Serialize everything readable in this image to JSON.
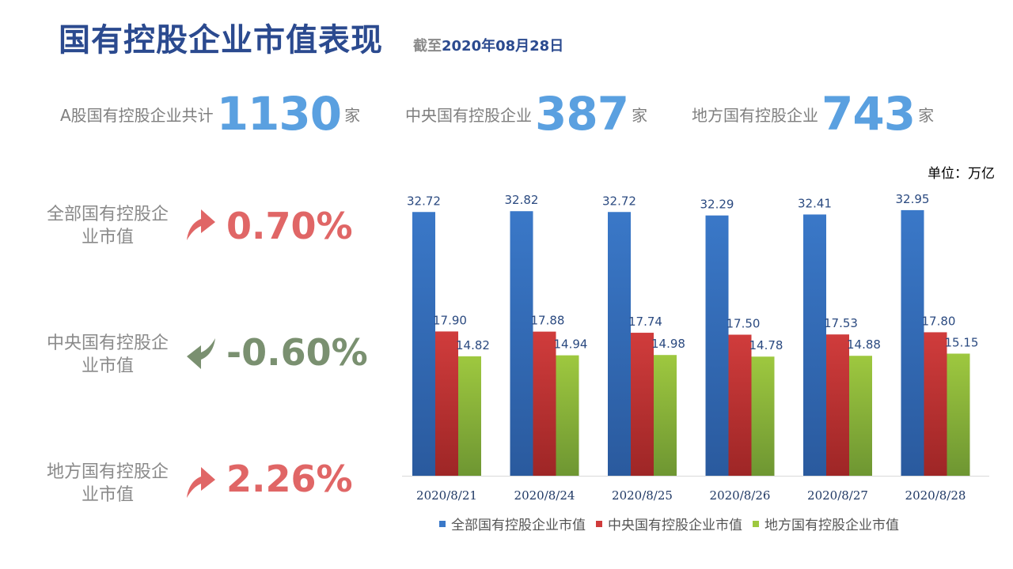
{
  "header": {
    "title": "国有控股企业市值表现",
    "subtitle_prefix": "截至",
    "subtitle_date": "2020年08月28日"
  },
  "stats": [
    {
      "label": "A股国有控股企业共计",
      "value": "1130",
      "unit": "家"
    },
    {
      "label": "中央国有控股企业",
      "value": "387",
      "unit": "家"
    },
    {
      "label": "地方国有控股企业",
      "value": "743",
      "unit": "家"
    }
  ],
  "changes": [
    {
      "label": "全部国有控股企业市值",
      "value": "0.70%",
      "direction": "up",
      "icon": "curved-up-arrow-icon"
    },
    {
      "label": "中央国有控股企业市值",
      "value": "-0.60%",
      "direction": "down",
      "icon": "curved-down-arrow-icon"
    },
    {
      "label": "地方国有控股企业市值",
      "value": "2.26%",
      "direction": "up",
      "icon": "curved-up-arrow-icon"
    }
  ],
  "unit_note": "单位：万亿",
  "colors": {
    "up": "#e06666",
    "down": "#7a9070",
    "stat": "#5aa0e0",
    "title": "#2b4a8f"
  },
  "chart_data": {
    "type": "bar",
    "categories": [
      "2020/8/21",
      "2020/8/24",
      "2020/8/25",
      "2020/8/26",
      "2020/8/27",
      "2020/8/28"
    ],
    "series": [
      {
        "name": "全部国有控股企业市值",
        "values": [
          32.72,
          32.82,
          32.72,
          32.29,
          32.41,
          32.95
        ],
        "color": "#3a78c8",
        "colorDark": "#2a5a9e",
        "labelColor": "#2b4a80"
      },
      {
        "name": "中央国有控股企业市值",
        "values": [
          17.9,
          17.88,
          17.74,
          17.5,
          17.53,
          17.8
        ],
        "color": "#d03c3c",
        "colorDark": "#9e2626",
        "labelColor": "#2b4a80"
      },
      {
        "name": "地方国有控股企业市值",
        "values": [
          14.82,
          14.94,
          14.98,
          14.78,
          14.88,
          15.15
        ],
        "color": "#9ec83f",
        "colorDark": "#6e9632",
        "labelColor": "#2b4a80"
      }
    ],
    "ylim": [
      0,
      35
    ],
    "grid": false,
    "legend": "bottom",
    "value_format": "fixed2"
  }
}
